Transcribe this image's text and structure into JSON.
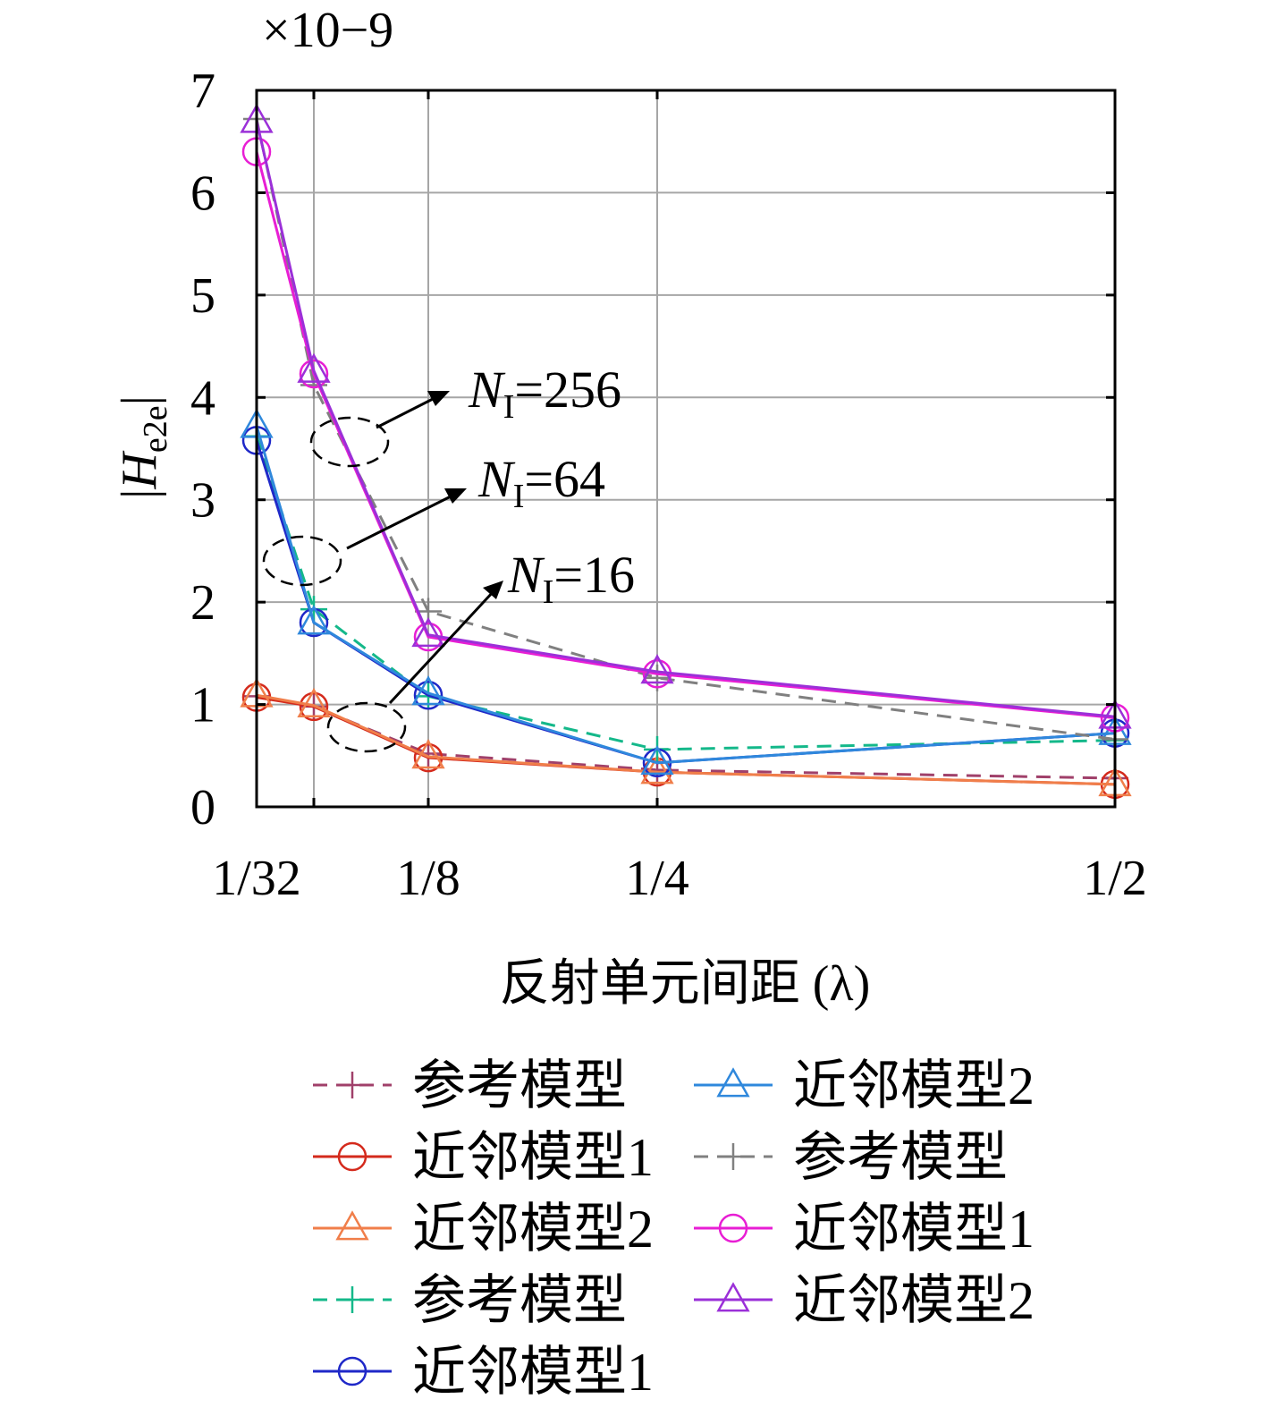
{
  "chart_data": {
    "type": "line",
    "x_tick_labels": [
      "1/32",
      "1/8",
      "1/4",
      "1/2"
    ],
    "x_ticks": [
      0.03125,
      0.125,
      0.25,
      0.5
    ],
    "xlim": [
      0.03125,
      0.5
    ],
    "x": [
      0.03125,
      0.0625,
      0.125,
      0.25,
      0.5
    ],
    "xlabel": "反射单元间距 (λ)",
    "ylabel": "|He2e|",
    "y_multiplier": "×10−9",
    "ylim": [
      0,
      7
    ],
    "y_ticks": [
      0,
      1,
      2,
      3,
      4,
      5,
      6,
      7
    ],
    "grid": true,
    "legend_position": "below",
    "series": [
      {
        "name": "参考模型",
        "color": "#a0406a",
        "dash": "dashed",
        "marker": "plus",
        "values": [
          1.08,
          0.98,
          0.52,
          0.36,
          0.28
        ]
      },
      {
        "name": "近邻模型1",
        "color": "#d42a1c",
        "dash": "solid",
        "marker": "circle",
        "values": [
          1.07,
          0.98,
          0.48,
          0.34,
          0.22
        ]
      },
      {
        "name": "近邻模型2",
        "color": "#f07e4a",
        "dash": "solid",
        "marker": "triangle",
        "values": [
          1.09,
          0.99,
          0.49,
          0.34,
          0.22
        ]
      },
      {
        "name": "参考模型",
        "color": "#14b88a",
        "dash": "dashed",
        "marker": "plus",
        "values": [
          3.62,
          1.93,
          1.08,
          0.56,
          0.65
        ]
      },
      {
        "name": "近邻模型1",
        "color": "#1f28c8",
        "dash": "solid",
        "marker": "circle",
        "values": [
          3.58,
          1.8,
          1.09,
          0.43,
          0.72
        ]
      },
      {
        "name": "近邻模型2",
        "color": "#2f88dc",
        "dash": "solid",
        "marker": "triangle",
        "values": [
          3.72,
          1.8,
          1.11,
          0.43,
          0.72
        ]
      },
      {
        "name": "参考模型",
        "color": "#808080",
        "dash": "dashed",
        "marker": "plus",
        "values": [
          6.72,
          4.12,
          1.91,
          1.26,
          0.66
        ]
      },
      {
        "name": "近邻模型1",
        "color": "#e81ed4",
        "dash": "solid",
        "marker": "circle",
        "values": [
          6.4,
          4.23,
          1.66,
          1.3,
          0.87
        ]
      },
      {
        "name": "近邻模型2",
        "color": "#9b30d8",
        "dash": "solid",
        "marker": "triangle",
        "values": [
          6.7,
          4.26,
          1.68,
          1.32,
          0.88
        ]
      }
    ],
    "annotations": [
      {
        "label": "NI=256",
        "N": "N",
        "sub": "I",
        "eq": "=256"
      },
      {
        "label": "NI=64",
        "N": "N",
        "sub": "I",
        "eq": "=64"
      },
      {
        "label": "NI=16",
        "N": "N",
        "sub": "I",
        "eq": "=16"
      }
    ]
  }
}
